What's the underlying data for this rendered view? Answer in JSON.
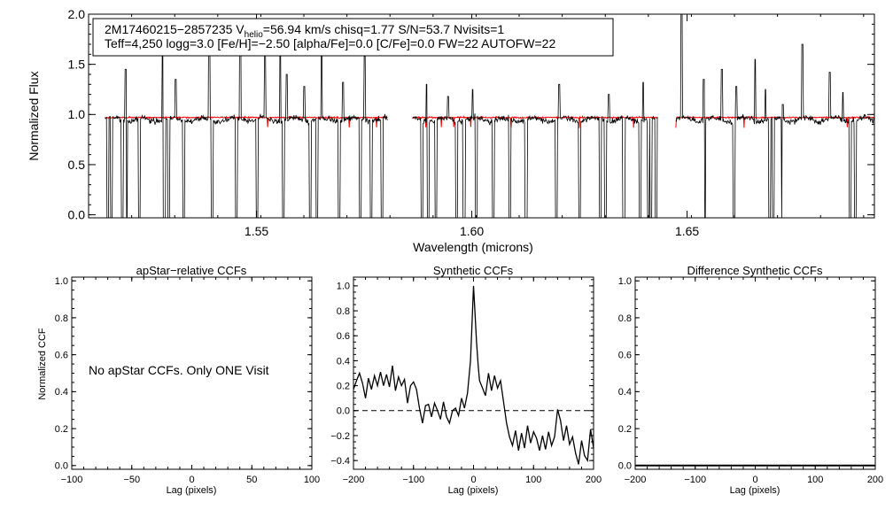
{
  "chart_data": [
    {
      "type": "line",
      "panel": "spectrum",
      "info_line1_parts": [
        "2M17460215−2857235  V",
        "helio",
        "=56.94 km/s  chisq=1.77  S/N=53.7  Nvisits=1"
      ],
      "info_line2": "Teff=4,250 logg=3.0 [Fe/H]=−2.50 [alpha/Fe]=0.0 [C/Fe]=0.0 FW=22 AUTOFW=22",
      "xlabel": "Wavelength (microns)",
      "ylabel": "Normalized Flux",
      "xlim": [
        1.511,
        1.6935
      ],
      "ylim": [
        -0.03,
        2.0
      ],
      "xticks": [
        1.55,
        1.6,
        1.65
      ],
      "xtick_labels": [
        "1.55",
        "1.60",
        "1.65"
      ],
      "yticks": [
        0.0,
        0.5,
        1.0,
        1.5,
        2.0
      ],
      "ytick_labels": [
        "0.0",
        "0.5",
        "1.0",
        "1.5",
        "2.0"
      ],
      "chips": [
        [
          1.5148,
          1.5804
        ],
        [
          1.5862,
          1.6431
        ],
        [
          1.6474,
          1.6944
        ]
      ],
      "series": [
        {
          "color": "#000000",
          "level": 0.95
        },
        {
          "color": "#ff0000",
          "level": 0.97
        }
      ],
      "absorption_lines": [
        1.5155,
        1.5163,
        1.5188,
        1.5198,
        1.5228,
        1.5286,
        1.5296,
        1.5331,
        1.5397,
        1.5453,
        1.5501,
        1.5562,
        1.5625,
        1.564,
        1.5692,
        1.5741,
        1.5766,
        1.5791,
        1.5884,
        1.5898,
        1.5917,
        1.5965,
        1.5982,
        1.601,
        1.605,
        1.6088,
        1.6126,
        1.6196,
        1.625,
        1.6298,
        1.631,
        1.6353,
        1.6391,
        1.641,
        1.6416,
        1.6428,
        1.654,
        1.6609,
        1.6692,
        1.67,
        1.6722,
        1.6879,
        1.6891
      ],
      "emission_spikes": [
        [
          1.5196,
          1.45
        ],
        [
          1.5282,
          1.7
        ],
        [
          1.5312,
          1.35
        ],
        [
          1.539,
          1.9
        ],
        [
          1.5462,
          1.95
        ],
        [
          1.552,
          1.6
        ],
        [
          1.5555,
          1.88
        ],
        [
          1.557,
          1.4
        ],
        [
          1.5611,
          1.28
        ],
        [
          1.5651,
          1.75
        ],
        [
          1.5701,
          1.32
        ],
        [
          1.5751,
          1.58
        ],
        [
          1.5895,
          1.3
        ],
        [
          1.5945,
          1.18
        ],
        [
          1.6002,
          1.25
        ],
        [
          1.6203,
          1.3
        ],
        [
          1.6318,
          1.2
        ],
        [
          1.6398,
          1.32
        ],
        [
          1.6472,
          1.95
        ],
        [
          1.6487,
          2.2
        ],
        [
          1.6539,
          1.35
        ],
        [
          1.6581,
          1.45
        ],
        [
          1.6614,
          1.28
        ],
        [
          1.6658,
          1.55
        ],
        [
          1.6682,
          1.25
        ],
        [
          1.6722,
          1.1
        ],
        [
          1.6768,
          1.7
        ],
        [
          1.6831,
          1.42
        ],
        [
          1.6862,
          1.22
        ]
      ]
    },
    {
      "type": "line",
      "panel": "apstar-ccf",
      "title": "apStar−relative CCFs",
      "xlabel": "Lag (pixels)",
      "ylabel": "Normalized CCF",
      "xlim": [
        -100,
        100
      ],
      "ylim": [
        -0.02,
        1.02
      ],
      "xticks": [
        -100,
        -50,
        0,
        50,
        100
      ],
      "xtick_labels": [
        "−100",
        "−50",
        "0",
        "50",
        "100"
      ],
      "yticks": [
        0.0,
        0.2,
        0.4,
        0.6,
        0.8,
        1.0
      ],
      "ytick_labels": [
        "0.0",
        "0.2",
        "0.4",
        "0.6",
        "0.8",
        "1.0"
      ],
      "message": "No apStar CCFs.  Only ONE Visit",
      "series": []
    },
    {
      "type": "line",
      "panel": "synthetic-ccf",
      "title": "Synthetic CCFs",
      "xlabel": "Lag (pixels)",
      "xlim": [
        -200,
        200
      ],
      "ylim": [
        -0.47,
        1.07
      ],
      "xticks": [
        -200,
        -100,
        0,
        100,
        200
      ],
      "xtick_labels": [
        "−200",
        "−100",
        "0",
        "100",
        "200"
      ],
      "yticks": [
        -0.4,
        -0.2,
        0.0,
        0.2,
        0.4,
        0.6,
        0.8,
        1.0
      ],
      "ytick_labels": [
        "−0.4",
        "−0.2",
        "0.0",
        "0.2",
        "0.4",
        "0.6",
        "0.8",
        "1.0"
      ],
      "zero_line": 0.0,
      "series": [
        {
          "color": "#000000",
          "x": [
            -200,
            -195,
            -190,
            -185,
            -180,
            -175,
            -170,
            -165,
            -160,
            -155,
            -150,
            -145,
            -140,
            -135,
            -130,
            -125,
            -120,
            -115,
            -110,
            -105,
            -100,
            -95,
            -90,
            -85,
            -80,
            -75,
            -70,
            -65,
            -60,
            -55,
            -50,
            -45,
            -40,
            -35,
            -30,
            -25,
            -20,
            -15,
            -10,
            -5,
            -2,
            0,
            2,
            5,
            8,
            10,
            15,
            20,
            25,
            30,
            35,
            40,
            45,
            50,
            55,
            60,
            65,
            70,
            75,
            80,
            85,
            90,
            95,
            100,
            105,
            110,
            115,
            120,
            125,
            130,
            135,
            140,
            145,
            150,
            155,
            160,
            165,
            170,
            175,
            180,
            185,
            190,
            195,
            200
          ],
          "y": [
            0.17,
            0.24,
            0.3,
            0.22,
            0.1,
            0.26,
            0.17,
            0.28,
            0.2,
            0.31,
            0.2,
            0.29,
            0.19,
            0.36,
            0.16,
            0.27,
            0.2,
            0.25,
            0.06,
            0.2,
            0.23,
            0.17,
            0.02,
            -0.1,
            0.04,
            0.05,
            -0.05,
            0.06,
            0.0,
            -0.07,
            0.07,
            -0.05,
            -0.1,
            0.0,
            0.02,
            -0.04,
            0.1,
            0.02,
            0.14,
            0.4,
            0.75,
            1.0,
            0.82,
            0.55,
            0.35,
            0.24,
            0.18,
            0.12,
            0.3,
            0.16,
            0.28,
            0.18,
            0.24,
            0.07,
            -0.1,
            -0.21,
            -0.28,
            -0.16,
            -0.32,
            -0.18,
            -0.3,
            -0.12,
            -0.26,
            -0.17,
            -0.22,
            -0.32,
            -0.2,
            -0.31,
            -0.17,
            -0.28,
            -0.21,
            0.01,
            -0.08,
            -0.24,
            -0.12,
            -0.27,
            -0.21,
            -0.34,
            -0.43,
            -0.24,
            -0.36,
            -0.4,
            -0.15,
            -0.3
          ]
        }
      ]
    },
    {
      "type": "line",
      "panel": "difference-ccf",
      "title": "Difference Synthetic CCFs",
      "xlabel": "Lag (pixels)",
      "xlim": [
        -200,
        200
      ],
      "ylim": [
        -0.02,
        1.02
      ],
      "xticks": [
        -200,
        -100,
        0,
        100,
        200
      ],
      "xtick_labels": [
        "−200",
        "−100",
        "0",
        "100",
        "200"
      ],
      "yticks": [
        0.0,
        0.2,
        0.4,
        0.6,
        0.8,
        1.0
      ],
      "ytick_labels": [
        "0.0",
        "0.2",
        "0.4",
        "0.6",
        "0.8",
        "1.0"
      ],
      "series": [
        {
          "color": "#000000",
          "x": [
            -200,
            200
          ],
          "y": [
            0.0,
            0.0
          ]
        }
      ]
    }
  ]
}
